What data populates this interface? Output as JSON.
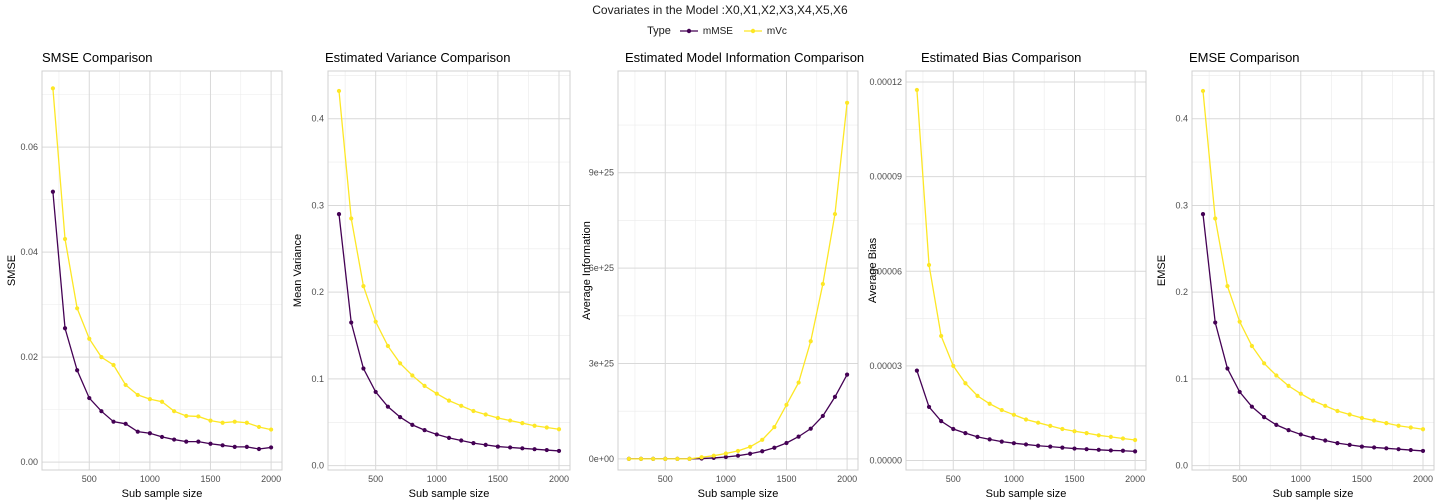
{
  "figure": {
    "title": "Covariates in the Model :X0,X1,X2,X3,X4,X5,X6",
    "legend_title": "Type",
    "series_colors": {
      "mMSE": "#440154",
      "mVc": "#FDE725"
    }
  },
  "chart_data": [
    {
      "type": "line",
      "title": "SMSE Comparison",
      "xlabel": "Sub sample size",
      "ylabel": "SMSE",
      "xlim": [
        110,
        2090
      ],
      "ylim": [
        -0.0015,
        0.0745
      ],
      "x_ticks": [
        500,
        1000,
        1500,
        2000
      ],
      "x_tick_labels": [
        "500",
        "1000",
        "1500",
        "2000"
      ],
      "y_ticks": [
        0,
        0.02,
        0.04,
        0.06
      ],
      "y_tick_labels": [
        "0.00",
        "0.02",
        "0.04",
        "0.06"
      ],
      "grid": true,
      "legend": "top",
      "x": [
        200,
        300,
        400,
        500,
        600,
        700,
        800,
        900,
        1000,
        1100,
        1200,
        1300,
        1400,
        1500,
        1600,
        1700,
        1800,
        1900,
        2000
      ],
      "series": [
        {
          "name": "mMSE",
          "values": [
            0.0515,
            0.0255,
            0.0175,
            0.0122,
            0.0097,
            0.0077,
            0.0073,
            0.0058,
            0.0055,
            0.0048,
            0.0043,
            0.0039,
            0.0039,
            0.0035,
            0.0032,
            0.0029,
            0.0029,
            0.0025,
            0.0028
          ]
        },
        {
          "name": "mVc",
          "values": [
            0.0712,
            0.0425,
            0.0293,
            0.0235,
            0.02,
            0.0185,
            0.0147,
            0.0128,
            0.012,
            0.0115,
            0.0097,
            0.0088,
            0.0087,
            0.0079,
            0.0075,
            0.0077,
            0.0075,
            0.0067,
            0.0062
          ]
        }
      ]
    },
    {
      "type": "line",
      "title": "Estimated Variance Comparison",
      "xlabel": "Sub sample size",
      "ylabel": "Mean Variance",
      "xlim": [
        110,
        2090
      ],
      "ylim": [
        -0.005,
        0.455
      ],
      "x_ticks": [
        500,
        1000,
        1500,
        2000
      ],
      "x_tick_labels": [
        "500",
        "1000",
        "1500",
        "2000"
      ],
      "y_ticks": [
        0,
        0.1,
        0.2,
        0.3,
        0.4
      ],
      "y_tick_labels": [
        "0.0",
        "0.1",
        "0.2",
        "0.3",
        "0.4"
      ],
      "grid": true,
      "legend": "top",
      "x": [
        200,
        300,
        400,
        500,
        600,
        700,
        800,
        900,
        1000,
        1100,
        1200,
        1300,
        1400,
        1500,
        1600,
        1700,
        1800,
        1900,
        2000
      ],
      "series": [
        {
          "name": "mMSE",
          "values": [
            0.29,
            0.165,
            0.112,
            0.085,
            0.068,
            0.056,
            0.047,
            0.041,
            0.036,
            0.032,
            0.029,
            0.026,
            0.024,
            0.022,
            0.021,
            0.02,
            0.019,
            0.018,
            0.017
          ]
        },
        {
          "name": "mVc",
          "values": [
            0.432,
            0.285,
            0.207,
            0.166,
            0.138,
            0.118,
            0.104,
            0.092,
            0.083,
            0.075,
            0.069,
            0.063,
            0.059,
            0.055,
            0.052,
            0.049,
            0.046,
            0.044,
            0.042
          ]
        }
      ]
    },
    {
      "type": "line",
      "title": "Estimated Model Information Comparison",
      "xlabel": "Sub sample size",
      "ylabel": "Average Information",
      "xlim": [
        110,
        2090
      ],
      "ylim": [
        -3.5e+24,
        1.22e+26
      ],
      "x_ticks": [
        500,
        1000,
        1500,
        2000
      ],
      "x_tick_labels": [
        "500",
        "1000",
        "1500",
        "2000"
      ],
      "y_ticks": [
        0,
        3e+25,
        6e+25,
        9e+25
      ],
      "y_tick_labels": [
        "0e+00",
        "3e+25",
        "6e+25",
        "9e+25"
      ],
      "grid": true,
      "legend": "top",
      "x": [
        200,
        300,
        400,
        500,
        600,
        700,
        800,
        900,
        1000,
        1100,
        1200,
        1300,
        1400,
        1500,
        1600,
        1700,
        1800,
        1900,
        2000
      ],
      "series": [
        {
          "name": "mMSE",
          "values": [
            0,
            0,
            0,
            0,
            0,
            0,
            1e+23,
            3e+23,
            6e+23,
            1e+24,
            1.6e+24,
            2.4e+24,
            3.5e+24,
            5e+24,
            7e+24,
            9.5e+24,
            1.35e+25,
            1.95e+25,
            2.65e+25
          ]
        },
        {
          "name": "mVc",
          "values": [
            0,
            0,
            0,
            0,
            0,
            0,
            5e+23,
            1e+24,
            1.7e+24,
            2.5e+24,
            3.8e+24,
            6e+24,
            1e+25,
            1.7e+25,
            2.4e+25,
            3.7e+25,
            5.5e+25,
            7.7e+25,
            1.12e+26
          ]
        }
      ]
    },
    {
      "type": "line",
      "title": "Estimated Bias Comparison",
      "xlabel": "Sub sample size",
      "ylabel": "Average Bias",
      "xlim": [
        110,
        2090
      ],
      "ylim": [
        -3e-06,
        0.0001235
      ],
      "x_ticks": [
        500,
        1000,
        1500,
        2000
      ],
      "x_tick_labels": [
        "500",
        "1000",
        "1500",
        "2000"
      ],
      "y_ticks": [
        0,
        3e-05,
        6e-05,
        9e-05,
        0.00012
      ],
      "y_tick_labels": [
        "0.00000",
        "0.00003",
        "0.00006",
        "0.00009",
        "0.00012"
      ],
      "grid": true,
      "legend": "top",
      "x": [
        200,
        300,
        400,
        500,
        600,
        700,
        800,
        900,
        1000,
        1100,
        1200,
        1300,
        1400,
        1500,
        1600,
        1700,
        1800,
        1900,
        2000
      ],
      "series": [
        {
          "name": "mMSE",
          "values": [
            2.85e-05,
            1.7e-05,
            1.25e-05,
            1e-05,
            8.7e-06,
            7.5e-06,
            6.7e-06,
            6e-06,
            5.5e-06,
            5.1e-06,
            4.7e-06,
            4.4e-06,
            4.1e-06,
            3.8e-06,
            3.6e-06,
            3.4e-06,
            3.2e-06,
            3.1e-06,
            2.9e-06
          ]
        },
        {
          "name": "mVc",
          "values": [
            0.0001175,
            6.2e-05,
            3.95e-05,
            3e-05,
            2.45e-05,
            2.05e-05,
            1.8e-05,
            1.6e-05,
            1.45e-05,
            1.3e-05,
            1.2e-05,
            1.1e-05,
            1e-05,
            9.3e-06,
            8.7e-06,
            8e-06,
            7.5e-06,
            7e-06,
            6.5e-06
          ]
        }
      ]
    },
    {
      "type": "line",
      "title": "EMSE Comparison",
      "xlabel": "Sub sample size",
      "ylabel": "EMSE",
      "xlim": [
        110,
        2090
      ],
      "ylim": [
        -0.005,
        0.455
      ],
      "x_ticks": [
        500,
        1000,
        1500,
        2000
      ],
      "x_tick_labels": [
        "500",
        "1000",
        "1500",
        "2000"
      ],
      "y_ticks": [
        0,
        0.1,
        0.2,
        0.3,
        0.4
      ],
      "y_tick_labels": [
        "0.0",
        "0.1",
        "0.2",
        "0.3",
        "0.4"
      ],
      "grid": true,
      "legend": "top",
      "x": [
        200,
        300,
        400,
        500,
        600,
        700,
        800,
        900,
        1000,
        1100,
        1200,
        1300,
        1400,
        1500,
        1600,
        1700,
        1800,
        1900,
        2000
      ],
      "series": [
        {
          "name": "mMSE",
          "values": [
            0.29,
            0.165,
            0.112,
            0.085,
            0.068,
            0.056,
            0.047,
            0.041,
            0.036,
            0.032,
            0.029,
            0.026,
            0.024,
            0.022,
            0.021,
            0.02,
            0.019,
            0.018,
            0.017
          ]
        },
        {
          "name": "mVc",
          "values": [
            0.432,
            0.285,
            0.207,
            0.166,
            0.138,
            0.118,
            0.104,
            0.092,
            0.083,
            0.075,
            0.069,
            0.063,
            0.059,
            0.055,
            0.052,
            0.049,
            0.046,
            0.044,
            0.042
          ]
        }
      ]
    }
  ]
}
